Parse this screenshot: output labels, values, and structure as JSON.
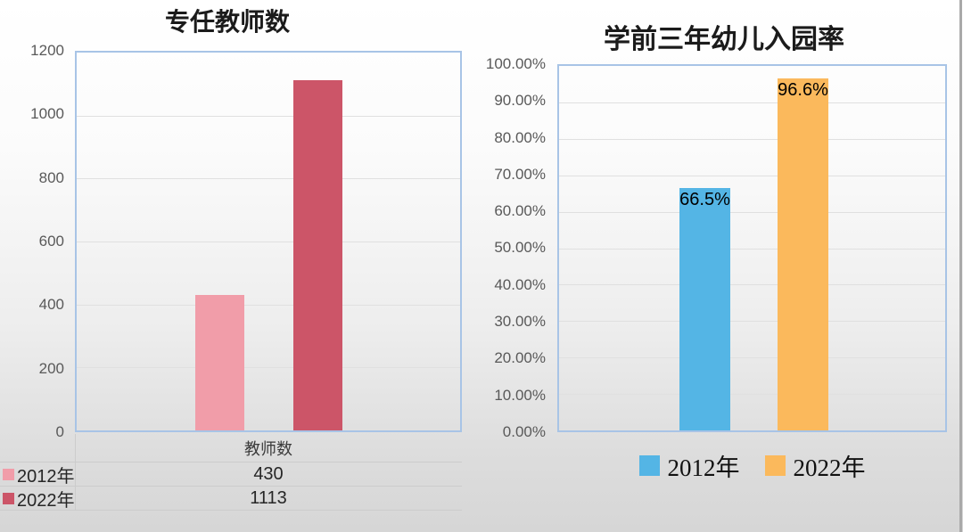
{
  "chart_data": [
    {
      "type": "bar",
      "title": "专任教师数",
      "categories": [
        "教师数"
      ],
      "series": [
        {
          "name": "2012年",
          "values": [
            430
          ]
        },
        {
          "name": "2022年",
          "values": [
            1113
          ]
        }
      ],
      "colors": [
        "#f19da9",
        "#cc5568"
      ],
      "ylim": [
        0,
        1200
      ],
      "ytick_interval": 200,
      "yticks": [
        "1200",
        "1000",
        "800",
        "600",
        "400",
        "200",
        "0"
      ],
      "grid": true,
      "legend_position": "table-rows-left",
      "table": {
        "column_header": "教师数",
        "rows": [
          {
            "label": "2012年",
            "value": "430"
          },
          {
            "label": "2022年",
            "value": "1113"
          }
        ]
      }
    },
    {
      "type": "bar",
      "title": "学前三年幼儿入园率",
      "categories": [
        ""
      ],
      "series": [
        {
          "name": "2012年",
          "values": [
            66.5
          ]
        },
        {
          "name": "2022年",
          "values": [
            96.6
          ]
        }
      ],
      "data_labels": [
        "66.5%",
        "96.6%"
      ],
      "colors": [
        "#54b5e5",
        "#fbb95c"
      ],
      "ylim": [
        0,
        100
      ],
      "ytick_interval": 10,
      "yticks": [
        "100.00%",
        "90.00%",
        "80.00%",
        "70.00%",
        "60.00%",
        "50.00%",
        "40.00%",
        "30.00%",
        "20.00%",
        "10.00%",
        "0.00%"
      ],
      "grid": true,
      "legend": [
        "2012年",
        "2022年"
      ],
      "legend_position": "bottom"
    }
  ],
  "accent_colors": {
    "plot_border": "#a8c4e6"
  }
}
